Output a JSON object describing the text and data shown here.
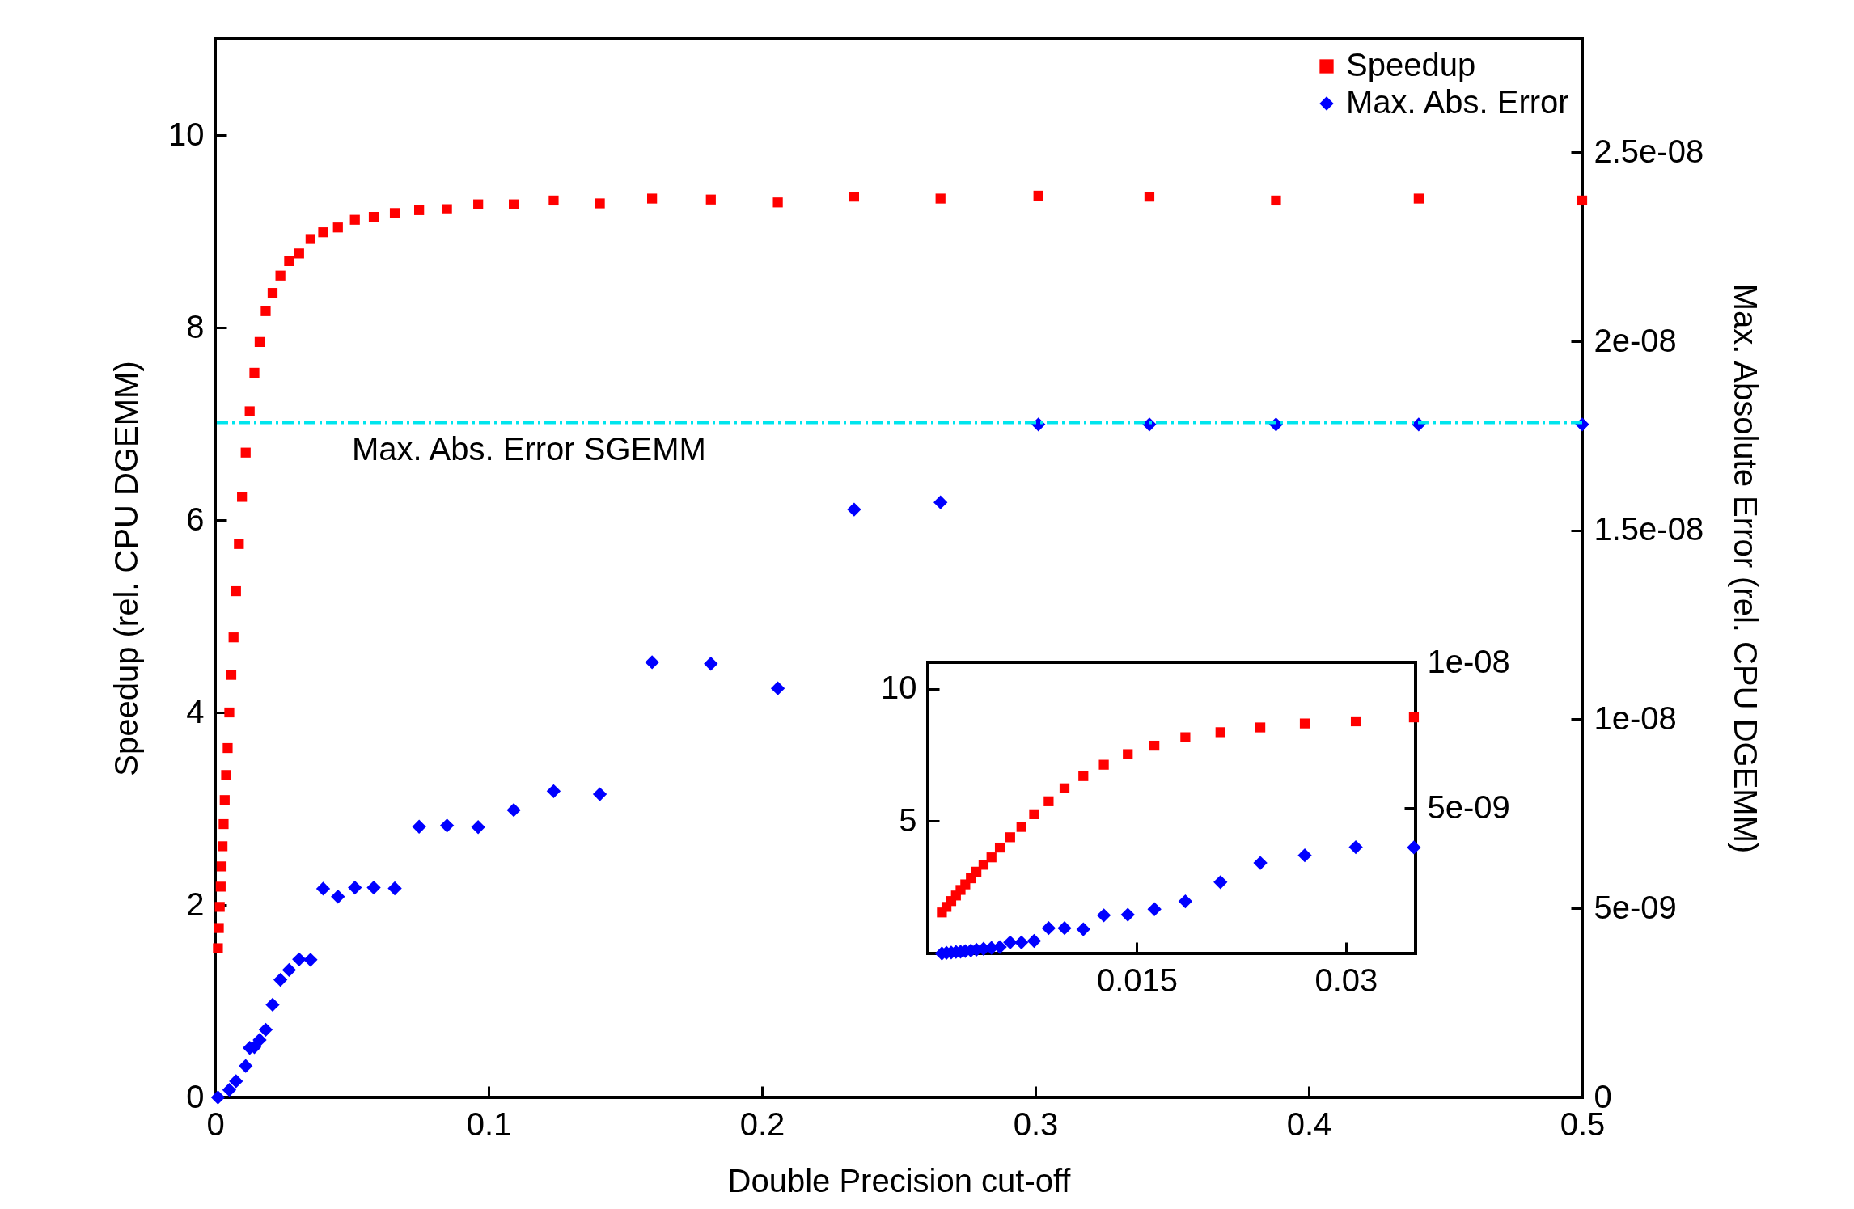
{
  "chart_data": [
    {
      "type": "scatter",
      "xlabel": "Double Precision cut-off",
      "ylabel": "Speedup (rel. CPU DGEMM)",
      "y2label": "Max. Absolute Error (rel. CPU DGEMM)",
      "xlim": [
        0,
        0.5
      ],
      "xticks": [
        0,
        0.1,
        0.2,
        0.3,
        0.4,
        0.5
      ],
      "ylim": [
        0,
        11
      ],
      "yticks": [
        0,
        2,
        4,
        6,
        8,
        10
      ],
      "y2lim": [
        0,
        2.8e-08
      ],
      "y2ticks": [
        0,
        {
          "value": 5e-09,
          "label": "5e-09"
        },
        {
          "value": 1e-08,
          "label": "1e-08"
        },
        {
          "value": 1.5e-08,
          "label": "1.5e-08"
        },
        {
          "value": 2e-08,
          "label": "2e-08"
        },
        {
          "value": 2.5e-08,
          "label": "2.5e-08"
        }
      ],
      "grid": false,
      "legend": "top right",
      "x": [
        0.00101,
        0.00134,
        0.00168,
        0.00202,
        0.00235,
        0.00269,
        0.00309,
        0.00349,
        0.004,
        0.00457,
        0.00517,
        0.00591,
        0.00672,
        0.00763,
        0.00867,
        0.00981,
        0.01116,
        0.01263,
        0.01435,
        0.01626,
        0.01848,
        0.021,
        0.02386,
        0.02705,
        0.03071,
        0.03488,
        0.0395,
        0.0449,
        0.0511,
        0.058,
        0.0657,
        0.0746,
        0.0848,
        0.0962,
        0.1092,
        0.1238,
        0.1407,
        0.1598,
        0.1813,
        0.2058,
        0.2337,
        0.2653,
        0.3011,
        0.3417,
        0.388,
        0.4402,
        0.5
      ],
      "series": [
        {
          "name": "Speedup",
          "color": "#ff0000",
          "marker": "square",
          "values": [
            1.55,
            1.76,
            1.98,
            2.19,
            2.4,
            2.61,
            2.84,
            3.09,
            3.35,
            3.63,
            4.0,
            4.39,
            4.78,
            5.26,
            5.75,
            6.24,
            6.7,
            7.13,
            7.53,
            7.85,
            8.17,
            8.36,
            8.54,
            8.69,
            8.77,
            8.92,
            8.99,
            9.04,
            9.12,
            9.15,
            9.19,
            9.22,
            9.23,
            9.28,
            9.28,
            9.32,
            9.29,
            9.34,
            9.33,
            9.3,
            9.36,
            9.34,
            9.37,
            9.36,
            9.32,
            9.34,
            9.32
          ]
        },
        {
          "name": "Max. Abs. Error",
          "color": "#0000ff",
          "marker": "diamond",
          "axis": "y2",
          "values": [
            0,
            null,
            null,
            null,
            null,
            null,
            null,
            null,
            null,
            null,
            2e-10,
            null,
            null,
            4.3e-10,
            null,
            null,
            8.3e-10,
            1.31e-09,
            1.33e-09,
            1.52e-09,
            1.79e-09,
            2.45e-09,
            3.11e-09,
            3.37e-09,
            3.65e-09,
            3.64e-09,
            5.52e-09,
            5.31e-09,
            5.55e-09,
            5.55e-09,
            5.53e-09,
            7.16e-09,
            7.19e-09,
            7.15e-09,
            7.6e-09,
            8.1e-09,
            8.02e-09,
            1.151e-08,
            1.147e-08,
            1.082e-08,
            1.555e-08,
            1.574e-08,
            1.78e-08,
            1.78e-08,
            1.78e-08,
            1.78e-08,
            1.78e-08
          ]
        }
      ],
      "ref_lines": [
        {
          "axis": "y2",
          "value": 1.785e-08,
          "label": "Max. Abs. Error SGEMM",
          "color": "#00e5ee",
          "line_style": "dashed"
        }
      ]
    },
    {
      "type": "scatter",
      "xlim": [
        0,
        0.035
      ],
      "xticks": [
        0.015,
        0.03
      ],
      "ylim": [
        0,
        11
      ],
      "yticks": [
        5,
        10
      ],
      "y2lim": [
        0,
        1e-08
      ],
      "y2ticks": [
        {
          "value": 5e-09,
          "label": "5e-09"
        },
        {
          "value": 1e-08,
          "label": "1e-08"
        }
      ],
      "grid": false,
      "x": [
        0.00101,
        0.00134,
        0.00168,
        0.00202,
        0.00235,
        0.00269,
        0.00309,
        0.00349,
        0.004,
        0.00457,
        0.00517,
        0.00591,
        0.00672,
        0.00763,
        0.00867,
        0.00981,
        0.01116,
        0.01263,
        0.01435,
        0.01626,
        0.01848,
        0.021,
        0.02386,
        0.02705,
        0.03071,
        0.03488
      ],
      "series": [
        {
          "color": "#ff0000",
          "marker": "square",
          "values": [
            1.55,
            1.76,
            1.98,
            2.19,
            2.4,
            2.61,
            2.84,
            3.09,
            3.35,
            3.63,
            4.0,
            4.39,
            4.78,
            5.26,
            5.75,
            6.24,
            6.7,
            7.13,
            7.53,
            7.85,
            8.17,
            8.36,
            8.54,
            8.69,
            8.77,
            8.92
          ]
        },
        {
          "color": "#0000ff",
          "marker": "diamond",
          "axis": "y2",
          "values": [
            0,
            2e-11,
            3e-11,
            5e-11,
            6e-11,
            8e-11,
            1e-10,
            1.3e-10,
            1.6e-10,
            1.9e-10,
            2.2e-10,
            3.8e-10,
            3.8e-10,
            4.3e-10,
            8.7e-10,
            8.7e-10,
            8.3e-10,
            1.31e-09,
            1.33e-09,
            1.52e-09,
            1.79e-09,
            2.45e-09,
            3.11e-09,
            3.37e-09,
            3.65e-09,
            3.64e-09
          ]
        }
      ]
    }
  ]
}
